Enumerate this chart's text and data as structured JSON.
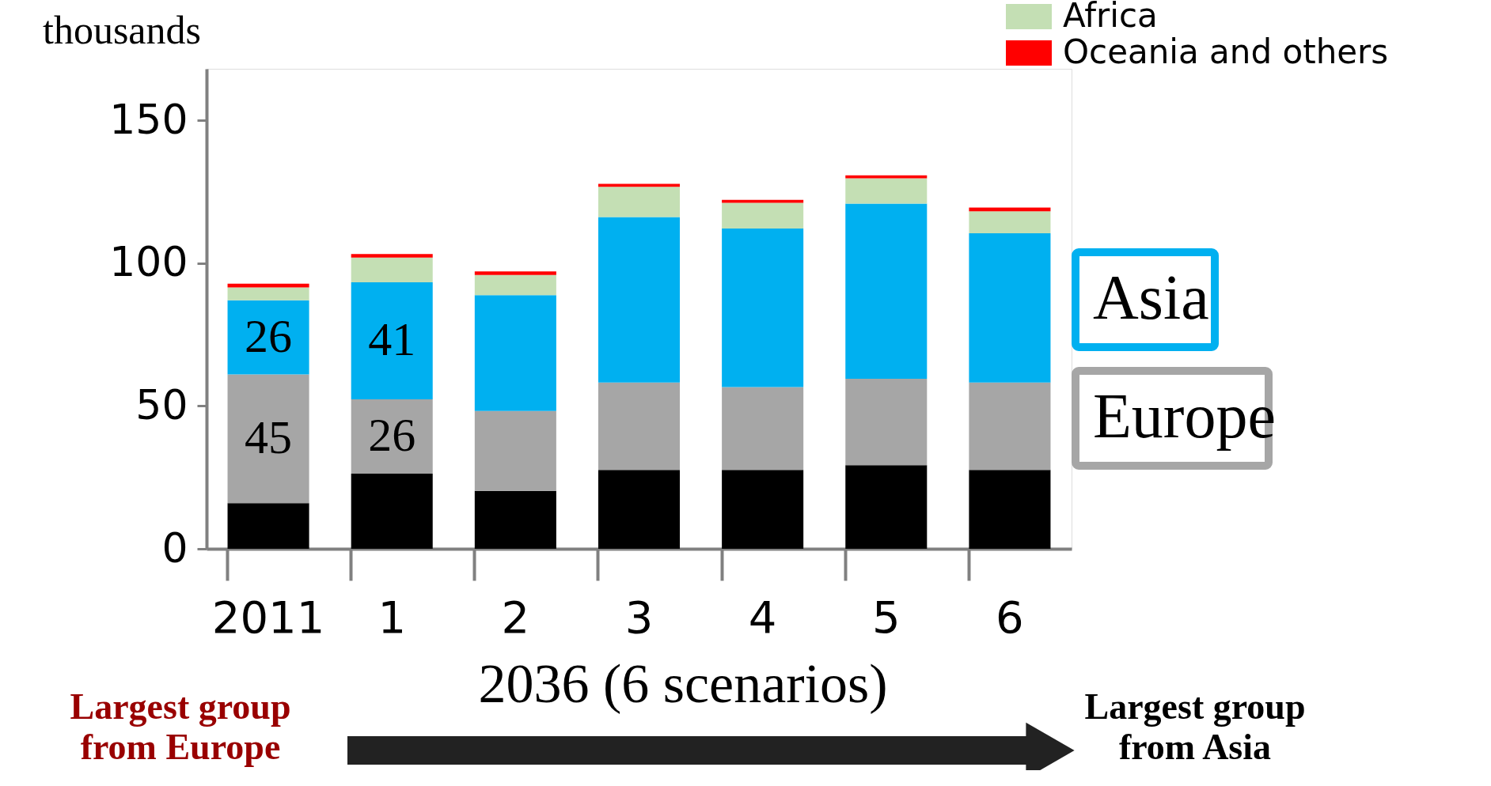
{
  "chart_data": {
    "type": "bar",
    "stacked": true,
    "ylabel": "thousands",
    "xlabel": "2036 (6 scenarios)",
    "categories": [
      "2011",
      "1",
      "2",
      "3",
      "4",
      "5",
      "6"
    ],
    "ylim": [
      0,
      168
    ],
    "yticks": [
      0,
      50,
      100,
      150
    ],
    "grid": false,
    "legend": "top right",
    "series": [
      {
        "color": "#000000",
        "values": [
          16,
          26.3,
          20.3,
          27.6,
          27.6,
          29.3,
          27.6
        ]
      },
      {
        "color": "#a6a6a6",
        "values": [
          45,
          26,
          27.9,
          30.6,
          29,
          30.2,
          30.6
        ],
        "value_labels": [
          "45",
          "26",
          null,
          null,
          null,
          null,
          null
        ]
      },
      {
        "color": "#00b0f0",
        "values": [
          26,
          41,
          40.6,
          57.9,
          55.5,
          61.3,
          52.2
        ],
        "value_labels": [
          "26",
          "41",
          null,
          null,
          null,
          null,
          null
        ]
      },
      {
        "name": "Africa",
        "color": "#c4dfb4",
        "values": [
          4.5,
          8.6,
          7.0,
          10.6,
          9.0,
          8.9,
          7.7
        ]
      },
      {
        "name": "Oceania and others",
        "color": "#ff0000",
        "values": [
          1.3,
          1.3,
          1.3,
          1.0,
          1.0,
          1.0,
          1.3
        ]
      }
    ],
    "annotations": [
      "Asia",
      "Europe",
      "Largest group from Europe",
      "Largest group from Asia"
    ]
  }
}
